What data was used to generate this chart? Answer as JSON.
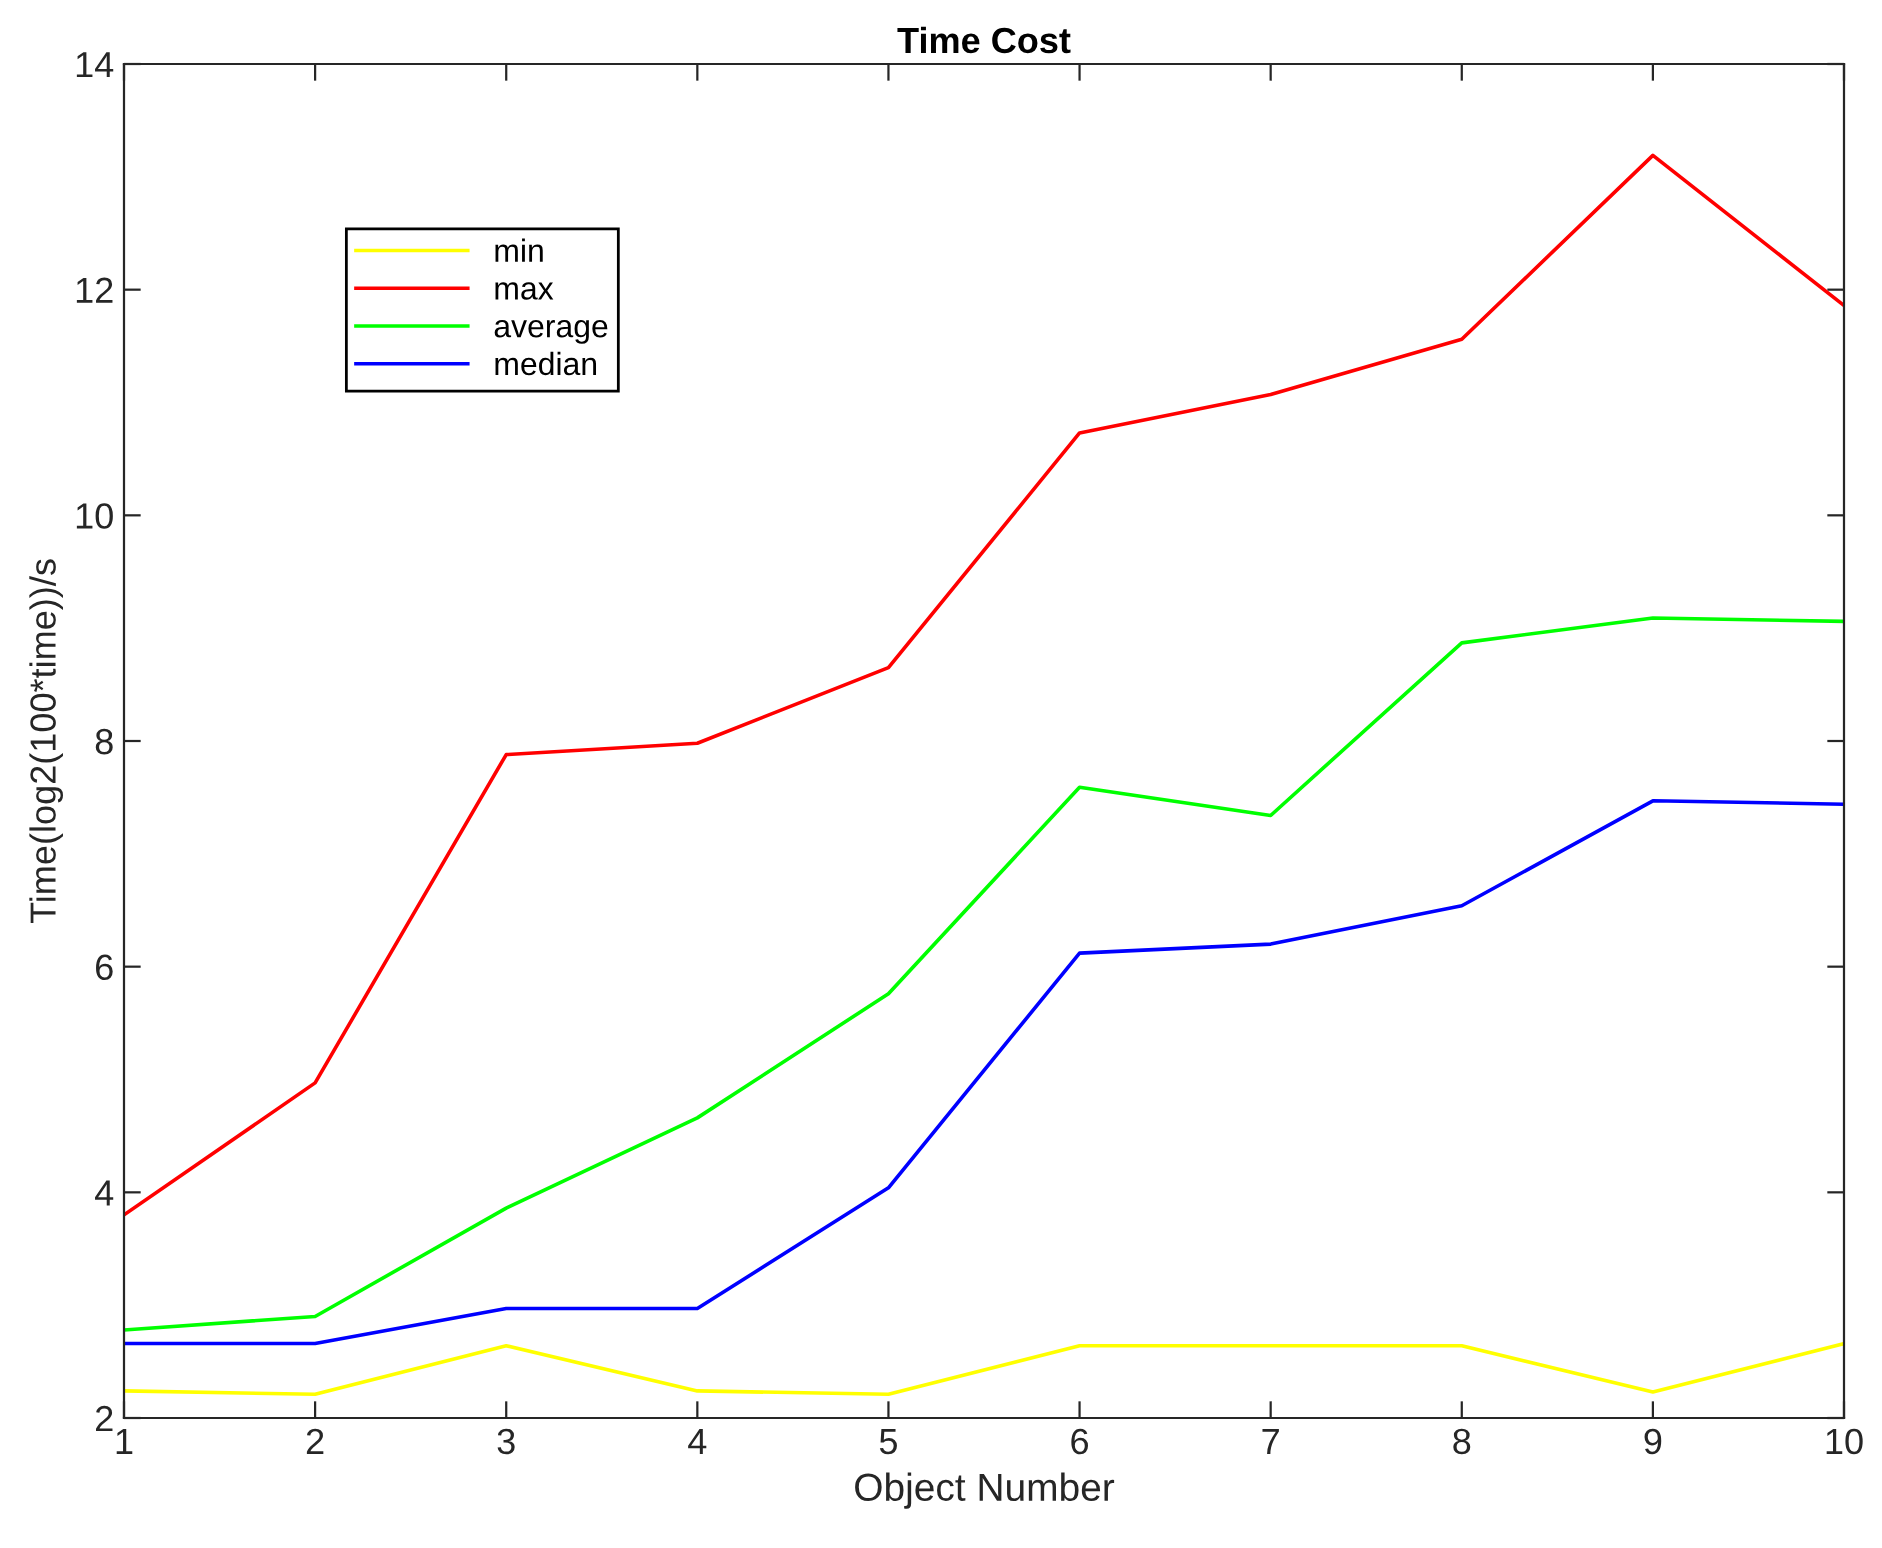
{
  "chart_data": {
    "type": "line",
    "title": "Time Cost",
    "xlabel": "Object Number",
    "ylabel": "Time(log2(100*time))/s",
    "x": [
      1,
      2,
      3,
      4,
      5,
      6,
      7,
      8,
      9,
      10
    ],
    "series": [
      {
        "name": "min",
        "color": "#ffff00",
        "values": [
          2.24,
          2.21,
          2.64,
          2.24,
          2.21,
          2.64,
          2.64,
          2.64,
          2.23,
          2.66
        ]
      },
      {
        "name": "max",
        "color": "#ff0000",
        "values": [
          3.8,
          4.97,
          7.88,
          7.98,
          8.65,
          10.73,
          11.07,
          11.56,
          13.19,
          11.86
        ]
      },
      {
        "name": "average",
        "color": "#00ff00",
        "values": [
          2.78,
          2.9,
          3.86,
          4.66,
          5.76,
          7.59,
          7.34,
          8.87,
          9.09,
          9.06
        ]
      },
      {
        "name": "median",
        "color": "#0000ff",
        "values": [
          2.66,
          2.66,
          2.97,
          2.97,
          4.04,
          6.12,
          6.2,
          6.54,
          7.47,
          7.44
        ]
      }
    ],
    "xlim": [
      1,
      10
    ],
    "xticks": [
      1,
      2,
      3,
      4,
      5,
      6,
      7,
      8,
      9,
      10
    ],
    "ylim": [
      2,
      14
    ],
    "yticks": [
      2,
      4,
      6,
      8,
      10,
      12,
      14
    ],
    "grid": false,
    "legend": "top left",
    "marker": "none",
    "line_style": "solid"
  }
}
